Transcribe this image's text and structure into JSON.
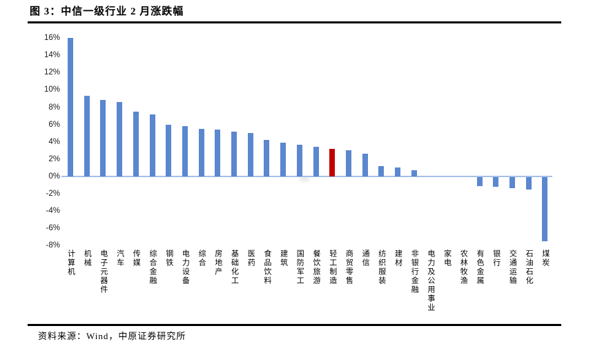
{
  "figure": {
    "title": "图 3：中信一级行业 2 月涨跌幅"
  },
  "footer": {
    "source": "资料来源：Wind，中原证券研究所"
  },
  "colors": {
    "bar": "#5A87CF",
    "highlight": "#C00000",
    "axis_line": "#A3C0E6",
    "rule": "#000000"
  },
  "chart_data": {
    "type": "bar",
    "title": "中信一级行业2月涨跌幅",
    "unit": "%",
    "categories": [
      "计算机",
      "机械",
      "电子元器件",
      "汽车",
      "传媒",
      "综合金融",
      "钢铁",
      "电力设备",
      "综合",
      "房地产",
      "基础化工",
      "医药",
      "食品饮料",
      "建筑",
      "国防军工",
      "餐饮旅游",
      "轻工制造",
      "商贸零售",
      "通信",
      "纺织服装",
      "建材",
      "非银行金融",
      "电力及公用事业",
      "家电",
      "农林牧渔",
      "有色金属",
      "银行",
      "交通运输",
      "石油石化",
      "煤炭"
    ],
    "values": [
      16.0,
      9.3,
      8.8,
      8.6,
      7.5,
      7.2,
      6.0,
      5.8,
      5.5,
      5.4,
      5.2,
      5.0,
      4.2,
      3.9,
      3.7,
      3.4,
      3.2,
      3.0,
      2.6,
      1.2,
      1.0,
      0.7,
      0.0,
      0.0,
      0.0,
      -1.0,
      -1.1,
      -1.3,
      -1.4,
      -7.4
    ],
    "highlight_index": 16,
    "highlight_category": "轻工制造",
    "ylim": [
      -8,
      16
    ],
    "ytick_step": 2,
    "ytick_labels": [
      "16%",
      "14%",
      "12%",
      "10%",
      "8%",
      "6%",
      "4%",
      "2%",
      "0%",
      "-2%",
      "-4%",
      "-6%",
      "-8%"
    ],
    "grid": false,
    "legend": false
  }
}
